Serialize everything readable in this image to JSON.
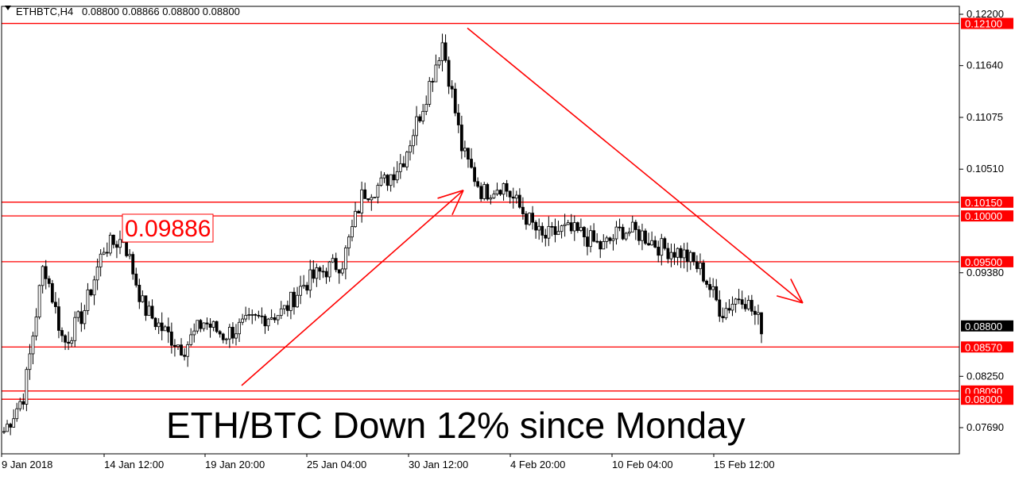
{
  "header": {
    "symbol_timeframe": "ETHBTC,H4",
    "ohlc": "0.08800 0.08866 0.08800 0.08800"
  },
  "annotations": {
    "headline": "ETH/BTC Down 12% since Monday",
    "price_box": "0.09886"
  },
  "colors": {
    "level_line": "#ff0000",
    "candle": "#000000",
    "background": "#ffffff",
    "current_price_bg": "#000000"
  },
  "chart_data": {
    "type": "candlestick",
    "symbol": "ETHBTC",
    "timeframe": "H4",
    "ylim": [
      0.0745,
      0.1225
    ],
    "y_ticks": [
      "0.12200",
      "0.11640",
      "0.11075",
      "0.10510",
      "0.09380",
      "0.08250",
      "0.07690"
    ],
    "x_tick_labels": [
      "9 Jan 2018",
      "14 Jan 12:00",
      "19 Jan 20:00",
      "25 Jan 04:00",
      "30 Jan 12:00",
      "4 Feb 20:00",
      "10 Feb 04:00",
      "15 Feb 12:00"
    ],
    "horizontal_levels": [
      {
        "label": "0.12100",
        "value": 0.121
      },
      {
        "label": "0.10150",
        "value": 0.1015
      },
      {
        "label": "0.10000",
        "value": 0.1
      },
      {
        "label": "0.09500",
        "value": 0.095
      },
      {
        "label": "0.08570",
        "value": 0.0857
      },
      {
        "label": "0.08090",
        "value": 0.0809
      },
      {
        "label": "0.08000",
        "value": 0.08
      }
    ],
    "current_price": {
      "label": "0.08800",
      "value": 0.088
    },
    "close_path": [
      {
        "x": "9 Jan 2018",
        "y": 0.0765
      },
      {
        "x": "10 Jan",
        "y": 0.0805
      },
      {
        "x": "11 Jan",
        "y": 0.095
      },
      {
        "x": "12 Jan",
        "y": 0.086
      },
      {
        "x": "13 Jan",
        "y": 0.0895
      },
      {
        "x": "14 Jan 12:00",
        "y": 0.0965
      },
      {
        "x": "15 Jan",
        "y": 0.0975
      },
      {
        "x": "16 Jan",
        "y": 0.09
      },
      {
        "x": "17 Jan",
        "y": 0.0875
      },
      {
        "x": "18 Jan",
        "y": 0.0855
      },
      {
        "x": "19 Jan",
        "y": 0.0885
      },
      {
        "x": "19 Jan 20:00",
        "y": 0.087
      },
      {
        "x": "21 Jan",
        "y": 0.088
      },
      {
        "x": "23 Jan",
        "y": 0.089
      },
      {
        "x": "24 Jan",
        "y": 0.0895
      },
      {
        "x": "25 Jan 04:00",
        "y": 0.0925
      },
      {
        "x": "26 Jan",
        "y": 0.094
      },
      {
        "x": "27 Jan",
        "y": 0.095
      },
      {
        "x": "28 Jan",
        "y": 0.1025
      },
      {
        "x": "29 Jan",
        "y": 0.1035
      },
      {
        "x": "29 Jan 12:00",
        "y": 0.106
      },
      {
        "x": "30 Jan",
        "y": 0.112
      },
      {
        "x": "30 Jan 12:00",
        "y": 0.119
      },
      {
        "x": "31 Jan",
        "y": 0.107
      },
      {
        "x": "1 Feb",
        "y": 0.1025
      },
      {
        "x": "2 Feb",
        "y": 0.1035
      },
      {
        "x": "3 Feb",
        "y": 0.1005
      },
      {
        "x": "4 Feb",
        "y": 0.0975
      },
      {
        "x": "4 Feb 20:00",
        "y": 0.0985
      },
      {
        "x": "6 Feb",
        "y": 0.098
      },
      {
        "x": "8 Feb",
        "y": 0.0965
      },
      {
        "x": "10 Feb 04:00",
        "y": 0.0985
      },
      {
        "x": "12 Feb",
        "y": 0.098
      },
      {
        "x": "13 Feb",
        "y": 0.0965
      },
      {
        "x": "14 Feb",
        "y": 0.096
      },
      {
        "x": "15 Feb",
        "y": 0.094
      },
      {
        "x": "15 Feb 12:00",
        "y": 0.0895
      },
      {
        "x": "16 Feb",
        "y": 0.0915
      },
      {
        "x": "17 Feb",
        "y": 0.088
      }
    ],
    "trend_lines": [
      {
        "name": "uptrend",
        "from": {
          "x": "19 Jan 20:00",
          "y": 0.0815
        },
        "to": {
          "x": "30 Jan 12:00",
          "y": 0.1028
        }
      },
      {
        "name": "downtrend",
        "from": {
          "x": "30 Jan 12:00",
          "y": 0.1205
        },
        "to": {
          "x": "17 Feb",
          "y": 0.0905
        }
      }
    ]
  }
}
